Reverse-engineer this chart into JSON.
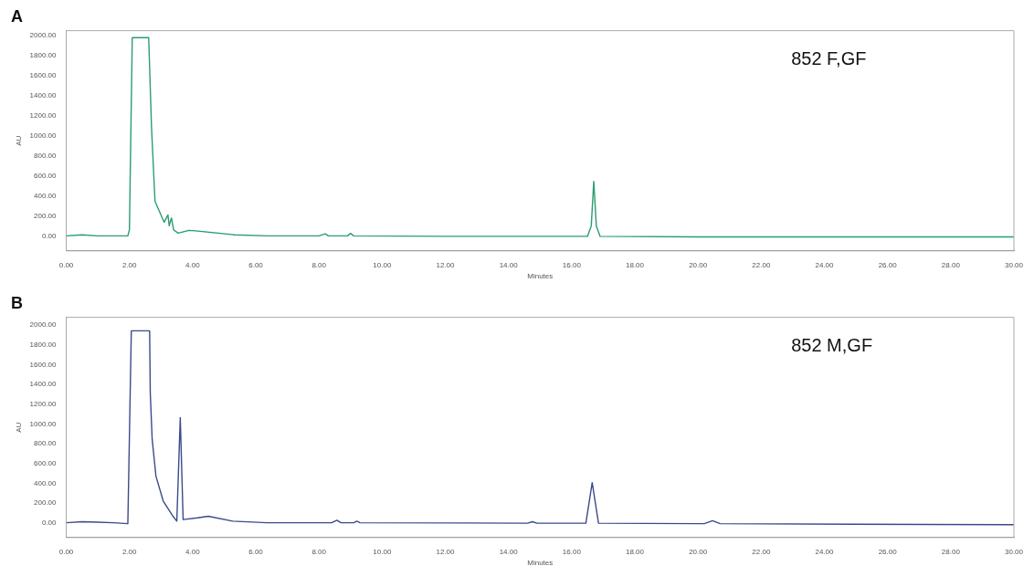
{
  "chart_data": [
    {
      "type": "line",
      "title": "A",
      "xlabel": "Minutes",
      "ylabel": "AU",
      "annotations": [
        "852 F,GF"
      ],
      "legend": false,
      "grid": false,
      "marker": "none",
      "line_style": "solid",
      "xlim": [
        0,
        30
      ],
      "xticks": [
        {
          "value": 0,
          "label": "0.00"
        },
        {
          "value": 2,
          "label": "2.00"
        },
        {
          "value": 4,
          "label": "4.00"
        },
        {
          "value": 6,
          "label": "6.00"
        },
        {
          "value": 8,
          "label": "8.00"
        },
        {
          "value": 10,
          "label": "10.00"
        },
        {
          "value": 12,
          "label": "12.00"
        },
        {
          "value": 14,
          "label": "14.00"
        },
        {
          "value": 16,
          "label": "16.00"
        },
        {
          "value": 18,
          "label": "18.00"
        },
        {
          "value": 20,
          "label": "20.00"
        },
        {
          "value": 22,
          "label": "22.00"
        },
        {
          "value": 24,
          "label": "24.00"
        },
        {
          "value": 26,
          "label": "26.00"
        },
        {
          "value": 28,
          "label": "28.00"
        },
        {
          "value": 30,
          "label": "30.00"
        }
      ],
      "ylim": [
        -150,
        2050
      ],
      "yticks": [
        {
          "value": 0,
          "label": "0.00"
        },
        {
          "value": 200,
          "label": "200.00"
        },
        {
          "value": 400,
          "label": "400.00"
        },
        {
          "value": 600,
          "label": "600.00"
        },
        {
          "value": 800,
          "label": "800.00"
        },
        {
          "value": 1000,
          "label": "1000.00"
        },
        {
          "value": 1200,
          "label": "1200.00"
        },
        {
          "value": 1400,
          "label": "1400.00"
        },
        {
          "value": 1600,
          "label": "1600.00"
        },
        {
          "value": 1800,
          "label": "1800.00"
        },
        {
          "value": 2000,
          "label": "2000.00"
        }
      ],
      "series": [
        {
          "color": "#2a9d6f",
          "x": [
            0,
            0.5,
            1,
            1.5,
            1.95,
            2.0,
            2.09,
            2.61,
            2.7,
            2.81,
            3.1,
            3.22,
            3.26,
            3.33,
            3.4,
            3.54,
            3.88,
            4.1,
            5.33,
            6.4,
            8.0,
            8.2,
            8.3,
            8.9,
            9.0,
            9.1,
            12,
            16.5,
            16.62,
            16.7,
            16.78,
            16.9,
            20,
            25,
            30
          ],
          "values": [
            0,
            10,
            0,
            0,
            0,
            60,
            1980,
            1980,
            1080,
            345,
            136,
            209,
            100,
            180,
            60,
            27,
            55,
            50,
            10,
            0,
            0,
            20,
            0,
            0,
            25,
            0,
            -5,
            -5,
            100,
            545,
            100,
            -5,
            -10,
            -10,
            -10
          ]
        }
      ]
    },
    {
      "type": "line",
      "title": "B",
      "xlabel": "Minutes",
      "ylabel": "AU",
      "annotations": [
        "852 M,GF"
      ],
      "legend": false,
      "grid": false,
      "marker": "none",
      "line_style": "solid",
      "xlim": [
        0,
        30
      ],
      "xticks": [
        {
          "value": 0,
          "label": "0.00"
        },
        {
          "value": 2,
          "label": "2.00"
        },
        {
          "value": 4,
          "label": "4.00"
        },
        {
          "value": 6,
          "label": "6.00"
        },
        {
          "value": 8,
          "label": "8.00"
        },
        {
          "value": 10,
          "label": "10.00"
        },
        {
          "value": 12,
          "label": "12.00"
        },
        {
          "value": 14,
          "label": "14.00"
        },
        {
          "value": 16,
          "label": "16.00"
        },
        {
          "value": 18,
          "label": "18.00"
        },
        {
          "value": 20,
          "label": "20.00"
        },
        {
          "value": 22,
          "label": "22.00"
        },
        {
          "value": 24,
          "label": "24.00"
        },
        {
          "value": 26,
          "label": "26.00"
        },
        {
          "value": 28,
          "label": "28.00"
        },
        {
          "value": 30,
          "label": "30.00"
        }
      ],
      "ylim": [
        -150,
        2080
      ],
      "yticks": [
        {
          "value": 0,
          "label": "0.00"
        },
        {
          "value": 200,
          "label": "200.00"
        },
        {
          "value": 400,
          "label": "400.00"
        },
        {
          "value": 600,
          "label": "600.00"
        },
        {
          "value": 800,
          "label": "800.00"
        },
        {
          "value": 1000,
          "label": "1000.00"
        },
        {
          "value": 1200,
          "label": "1200.00"
        },
        {
          "value": 1400,
          "label": "1400.00"
        },
        {
          "value": 1600,
          "label": "1600.00"
        },
        {
          "value": 1800,
          "label": "1800.00"
        },
        {
          "value": 2000,
          "label": "2000.00"
        }
      ],
      "series": [
        {
          "color": "#3a4a8c",
          "x": [
            0,
            0.5,
            1,
            1.5,
            1.95,
            2.06,
            2.12,
            2.64,
            2.66,
            2.72,
            2.84,
            3.07,
            3.38,
            3.5,
            3.61,
            3.7,
            4.15,
            4.5,
            5.27,
            6.36,
            8.4,
            8.57,
            8.7,
            9.1,
            9.2,
            9.3,
            14.6,
            14.76,
            14.9,
            16.45,
            16.65,
            16.85,
            20.2,
            20.46,
            20.7,
            25,
            30
          ],
          "values": [
            0,
            10,
            5,
            0,
            -10,
            1943,
            1943,
            1943,
            1317,
            845,
            471,
            220,
            65,
            16,
            1065,
            32,
            49,
            65,
            16,
            0,
            0,
            25,
            0,
            0,
            15,
            0,
            -5,
            10,
            -5,
            -5,
            406,
            -5,
            -10,
            20,
            -10,
            -15,
            -20
          ]
        }
      ]
    }
  ]
}
